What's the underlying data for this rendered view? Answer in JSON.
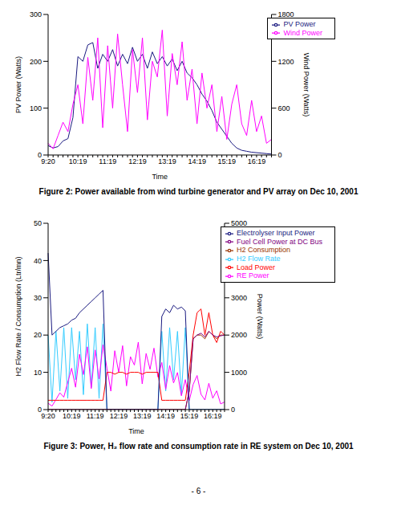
{
  "chart_data": [
    {
      "type": "line",
      "title": "Figure 2:  Power available from wind turbine generator and PV array on Dec 10, 2001",
      "x_label": "Time",
      "y_label": "PV Power (Watts)",
      "y2_label": "Wind Power (Watts)",
      "categories": [
        "9:20",
        null,
        null,
        null,
        null,
        null,
        "10:19",
        null,
        null,
        null,
        null,
        null,
        "11:19",
        null,
        null,
        null,
        null,
        null,
        "12:19",
        null,
        null,
        null,
        null,
        null,
        "13:19",
        null,
        null,
        null,
        null,
        null,
        "14:19",
        null,
        null,
        null,
        null,
        null,
        "15:19",
        null,
        null,
        null,
        null,
        null,
        "16:19",
        null,
        null,
        null
      ],
      "series": [
        {
          "name": "PV Power",
          "color": "#1a1a80",
          "values": [
            20,
            15,
            18,
            30,
            35,
            80,
            210,
            200,
            235,
            240,
            185,
            215,
            200,
            225,
            190,
            215,
            195,
            230,
            200,
            215,
            185,
            220,
            195,
            210,
            190,
            205,
            180,
            200,
            175,
            165,
            150,
            130,
            115,
            95,
            70,
            55,
            40,
            25,
            15,
            10,
            8,
            6,
            5,
            4,
            3,
            2
          ]
        },
        {
          "name": "Wind Power",
          "color": "#ff00ff",
          "axis": "y2",
          "values": [
            150,
            80,
            250,
            420,
            300,
            650,
            900,
            400,
            1250,
            700,
            1500,
            350,
            1400,
            600,
            1550,
            900,
            300,
            1350,
            800,
            1500,
            450,
            1200,
            1000,
            1600,
            500,
            1300,
            900,
            1450,
            700,
            1100,
            400,
            1050,
            600,
            900,
            300,
            750,
            200,
            650,
            900,
            400,
            250,
            700,
            300,
            500,
            150,
            200
          ]
        }
      ],
      "ylim": [
        0,
        300
      ],
      "yticks": [
        0,
        100,
        200,
        300
      ],
      "y2lim": [
        0,
        1800
      ],
      "y2ticks": [
        0,
        600,
        1200,
        1800
      ],
      "grid": false,
      "legend": "upper right"
    },
    {
      "type": "line",
      "title": "Figure 3:  Power, H₂ flow rate and consumption rate in RE system on Dec 10, 2001",
      "x_label": "Time",
      "y_label": "H2 Flow Rate / Consumption (Ltr/mn)",
      "y2_label": "Power (Watts)",
      "categories": [
        "9:20",
        null,
        null,
        null,
        null,
        null,
        "10:19",
        null,
        null,
        null,
        null,
        null,
        "11:19",
        null,
        null,
        null,
        null,
        null,
        "12:19",
        null,
        null,
        null,
        null,
        null,
        "13:19",
        null,
        null,
        null,
        null,
        null,
        "14:19",
        null,
        null,
        null,
        null,
        null,
        "15:19",
        null,
        null,
        null,
        null,
        null,
        "16:19",
        null,
        null,
        null
      ],
      "series": [
        {
          "name": "H2 Flow Rate",
          "color": "#33ccff",
          "values": [
            20,
            2,
            21,
            5,
            22,
            3,
            22,
            8,
            21,
            4,
            23,
            6,
            22,
            3,
            23,
            0,
            0,
            0,
            0,
            0,
            0,
            0,
            0,
            0,
            0,
            0,
            0,
            0,
            0,
            21,
            5,
            22,
            8,
            21,
            4,
            22,
            0,
            0,
            0,
            0,
            0,
            0,
            0,
            0,
            0,
            0
          ]
        },
        {
          "name": "H2 Consumption",
          "color": "#993300",
          "values": [
            0,
            0,
            0,
            0,
            0,
            0,
            0,
            0,
            0,
            0,
            0,
            0,
            0,
            0,
            0,
            0,
            0,
            0,
            0,
            0,
            0,
            0,
            0,
            0,
            0,
            0,
            0,
            0,
            0,
            0,
            0,
            0,
            0,
            0,
            0,
            0,
            5,
            19,
            20,
            20,
            19,
            21,
            20,
            19,
            20,
            20
          ]
        },
        {
          "name": "RE Power",
          "color": "#ff00ff",
          "axis": "y2",
          "values": [
            170,
            95,
            270,
            450,
            335,
            730,
            1110,
            600,
            1485,
            940,
            1685,
            565,
            1600,
            825,
            1740,
            1115,
            495,
            1580,
            1000,
            1715,
            635,
            1420,
            1195,
            1810,
            690,
            1505,
            1080,
            1650,
            875,
            1265,
            550,
            1180,
            715,
            995,
            370,
            805,
            240,
            675,
            915,
            410,
            258,
            706,
            305,
            504,
            153,
            202
          ]
        },
        {
          "name": "Load Power",
          "color": "#ff0000",
          "axis": "y2",
          "values": [
            250,
            250,
            250,
            250,
            250,
            250,
            250,
            250,
            250,
            250,
            250,
            250,
            250,
            250,
            250,
            1000,
            1000,
            950,
            1000,
            1000,
            950,
            1000,
            1000,
            1000,
            950,
            1000,
            1000,
            1000,
            1000,
            250,
            250,
            250,
            250,
            250,
            250,
            250,
            1000,
            2000,
            2600,
            2700,
            2000,
            2600,
            2000,
            1800,
            2100,
            2000
          ]
        },
        {
          "name": "Electrolyser Input Power",
          "color": "#1a1a80",
          "axis": "y2",
          "values": [
            4200,
            2000,
            2100,
            2200,
            2250,
            2300,
            2400,
            2450,
            2600,
            2700,
            2800,
            2900,
            3000,
            3100,
            3200,
            0,
            0,
            0,
            0,
            0,
            0,
            0,
            0,
            0,
            0,
            0,
            0,
            0,
            0,
            2500,
            2700,
            2600,
            2800,
            2700,
            2750,
            2650,
            0,
            0,
            0,
            0,
            0,
            0,
            0,
            0,
            0,
            0
          ]
        },
        {
          "name": "Fuel Cell Power at DC Bus",
          "color": "#800080",
          "axis": "y2",
          "values": [
            0,
            0,
            0,
            0,
            0,
            0,
            0,
            0,
            0,
            0,
            0,
            0,
            0,
            0,
            0,
            0,
            0,
            0,
            0,
            0,
            0,
            0,
            0,
            0,
            0,
            0,
            0,
            0,
            0,
            0,
            0,
            0,
            0,
            0,
            0,
            0,
            500,
            1900,
            2000,
            2050,
            1950,
            2100,
            2000,
            1950,
            1980,
            2000
          ]
        }
      ],
      "ylim": [
        0,
        50
      ],
      "yticks": [
        0,
        10,
        20,
        30,
        40,
        50
      ],
      "y2lim": [
        0,
        5000
      ],
      "y2ticks": [
        0,
        1000,
        2000,
        3000,
        4000,
        5000
      ],
      "grid": false,
      "legend": "upper right"
    }
  ],
  "page_number": "- 6 -"
}
